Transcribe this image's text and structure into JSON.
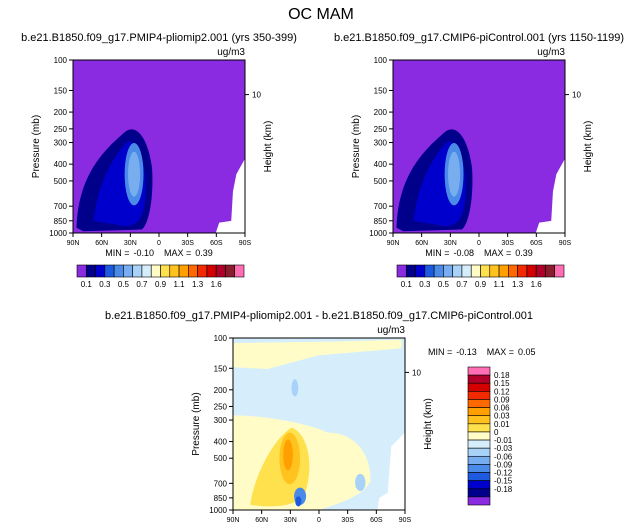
{
  "page_title": "OC MAM",
  "chart_data": [
    {
      "type": "contour",
      "title": "b.e21.B1850.f09_g17.PMIP4-pliomip2.001 (yrs 350-399)",
      "units": "ug/m3",
      "xlabel": "",
      "ylabel": "Pressure (mb)",
      "y2label": "Height (km)",
      "x_ticks": [
        "90N",
        "60N",
        "30N",
        "0",
        "30S",
        "60S",
        "90S"
      ],
      "y_ticks": [
        "100",
        "150",
        "200",
        "250",
        "300",
        "400",
        "500",
        "700",
        "850",
        "1000"
      ],
      "y2_ticks": [
        "10"
      ],
      "min_label": "MIN =",
      "min_value": "-0.10",
      "max_label": "MAX =",
      "max_value": "0.39",
      "colorbar_labels": [
        "0.1",
        "0.3",
        "0.5",
        "0.7",
        "0.9",
        "1.1",
        "1.3",
        "1.6"
      ],
      "colors": [
        "#8a2be2",
        "#00008b",
        "#0000cd",
        "#1e5ae0",
        "#4a8be8",
        "#78aef0",
        "#a8d2f8",
        "#d6eefc",
        "#fffcc8",
        "#ffe14d",
        "#ffc21e",
        "#ffa000",
        "#ff6a00",
        "#f22a00",
        "#d40000",
        "#b0002a",
        "#8b1c2e",
        "#ff6eb4"
      ]
    },
    {
      "type": "contour",
      "title": "b.e21.B1850.f09_g17.CMIP6-piControl.001 (yrs 1150-1199)",
      "units": "ug/m3",
      "xlabel": "",
      "ylabel": "Pressure (mb)",
      "y2label": "Height (km)",
      "x_ticks": [
        "90N",
        "60N",
        "30N",
        "0",
        "30S",
        "60S",
        "90S"
      ],
      "y_ticks": [
        "100",
        "150",
        "200",
        "250",
        "300",
        "400",
        "500",
        "700",
        "850",
        "1000"
      ],
      "y2_ticks": [
        "10"
      ],
      "min_label": "MIN =",
      "min_value": "-0.08",
      "max_label": "MAX =",
      "max_value": "0.39",
      "colorbar_labels": [
        "0.1",
        "0.3",
        "0.5",
        "0.7",
        "0.9",
        "1.1",
        "1.3",
        "1.6"
      ]
    },
    {
      "type": "contour",
      "title": "b.e21.B1850.f09_g17.PMIP4-pliomip2.001 - b.e21.B1850.f09_g17.CMIP6-piControl.001",
      "units": "ug/m3",
      "xlabel": "",
      "ylabel": "Pressure (mb)",
      "y2label": "Height (km)",
      "x_ticks": [
        "90N",
        "60N",
        "30N",
        "0",
        "30S",
        "60S",
        "90S"
      ],
      "y_ticks": [
        "100",
        "150",
        "200",
        "250",
        "300",
        "400",
        "500",
        "700",
        "850",
        "1000"
      ],
      "y2_ticks": [
        "10"
      ],
      "min_label": "MIN =",
      "min_value": "-0.13",
      "max_label": "MAX =",
      "max_value": "0.05",
      "colorbar_labels": [
        "0.18",
        "0.15",
        "0.12",
        "0.09",
        "0.06",
        "0.03",
        "0.01",
        "0",
        "-0.01",
        "-0.03",
        "-0.06",
        "-0.09",
        "-0.12",
        "-0.15",
        "-0.18"
      ],
      "colors": [
        "#ff6eb4",
        "#b0002a",
        "#d40000",
        "#f22a00",
        "#ff6a00",
        "#ffa000",
        "#ffc21e",
        "#ffe14d",
        "#fffcc8",
        "#d6eefc",
        "#a8d2f8",
        "#78aef0",
        "#4a8be8",
        "#1e5ae0",
        "#0000cd",
        "#00008b",
        "#8a2be2"
      ]
    }
  ]
}
